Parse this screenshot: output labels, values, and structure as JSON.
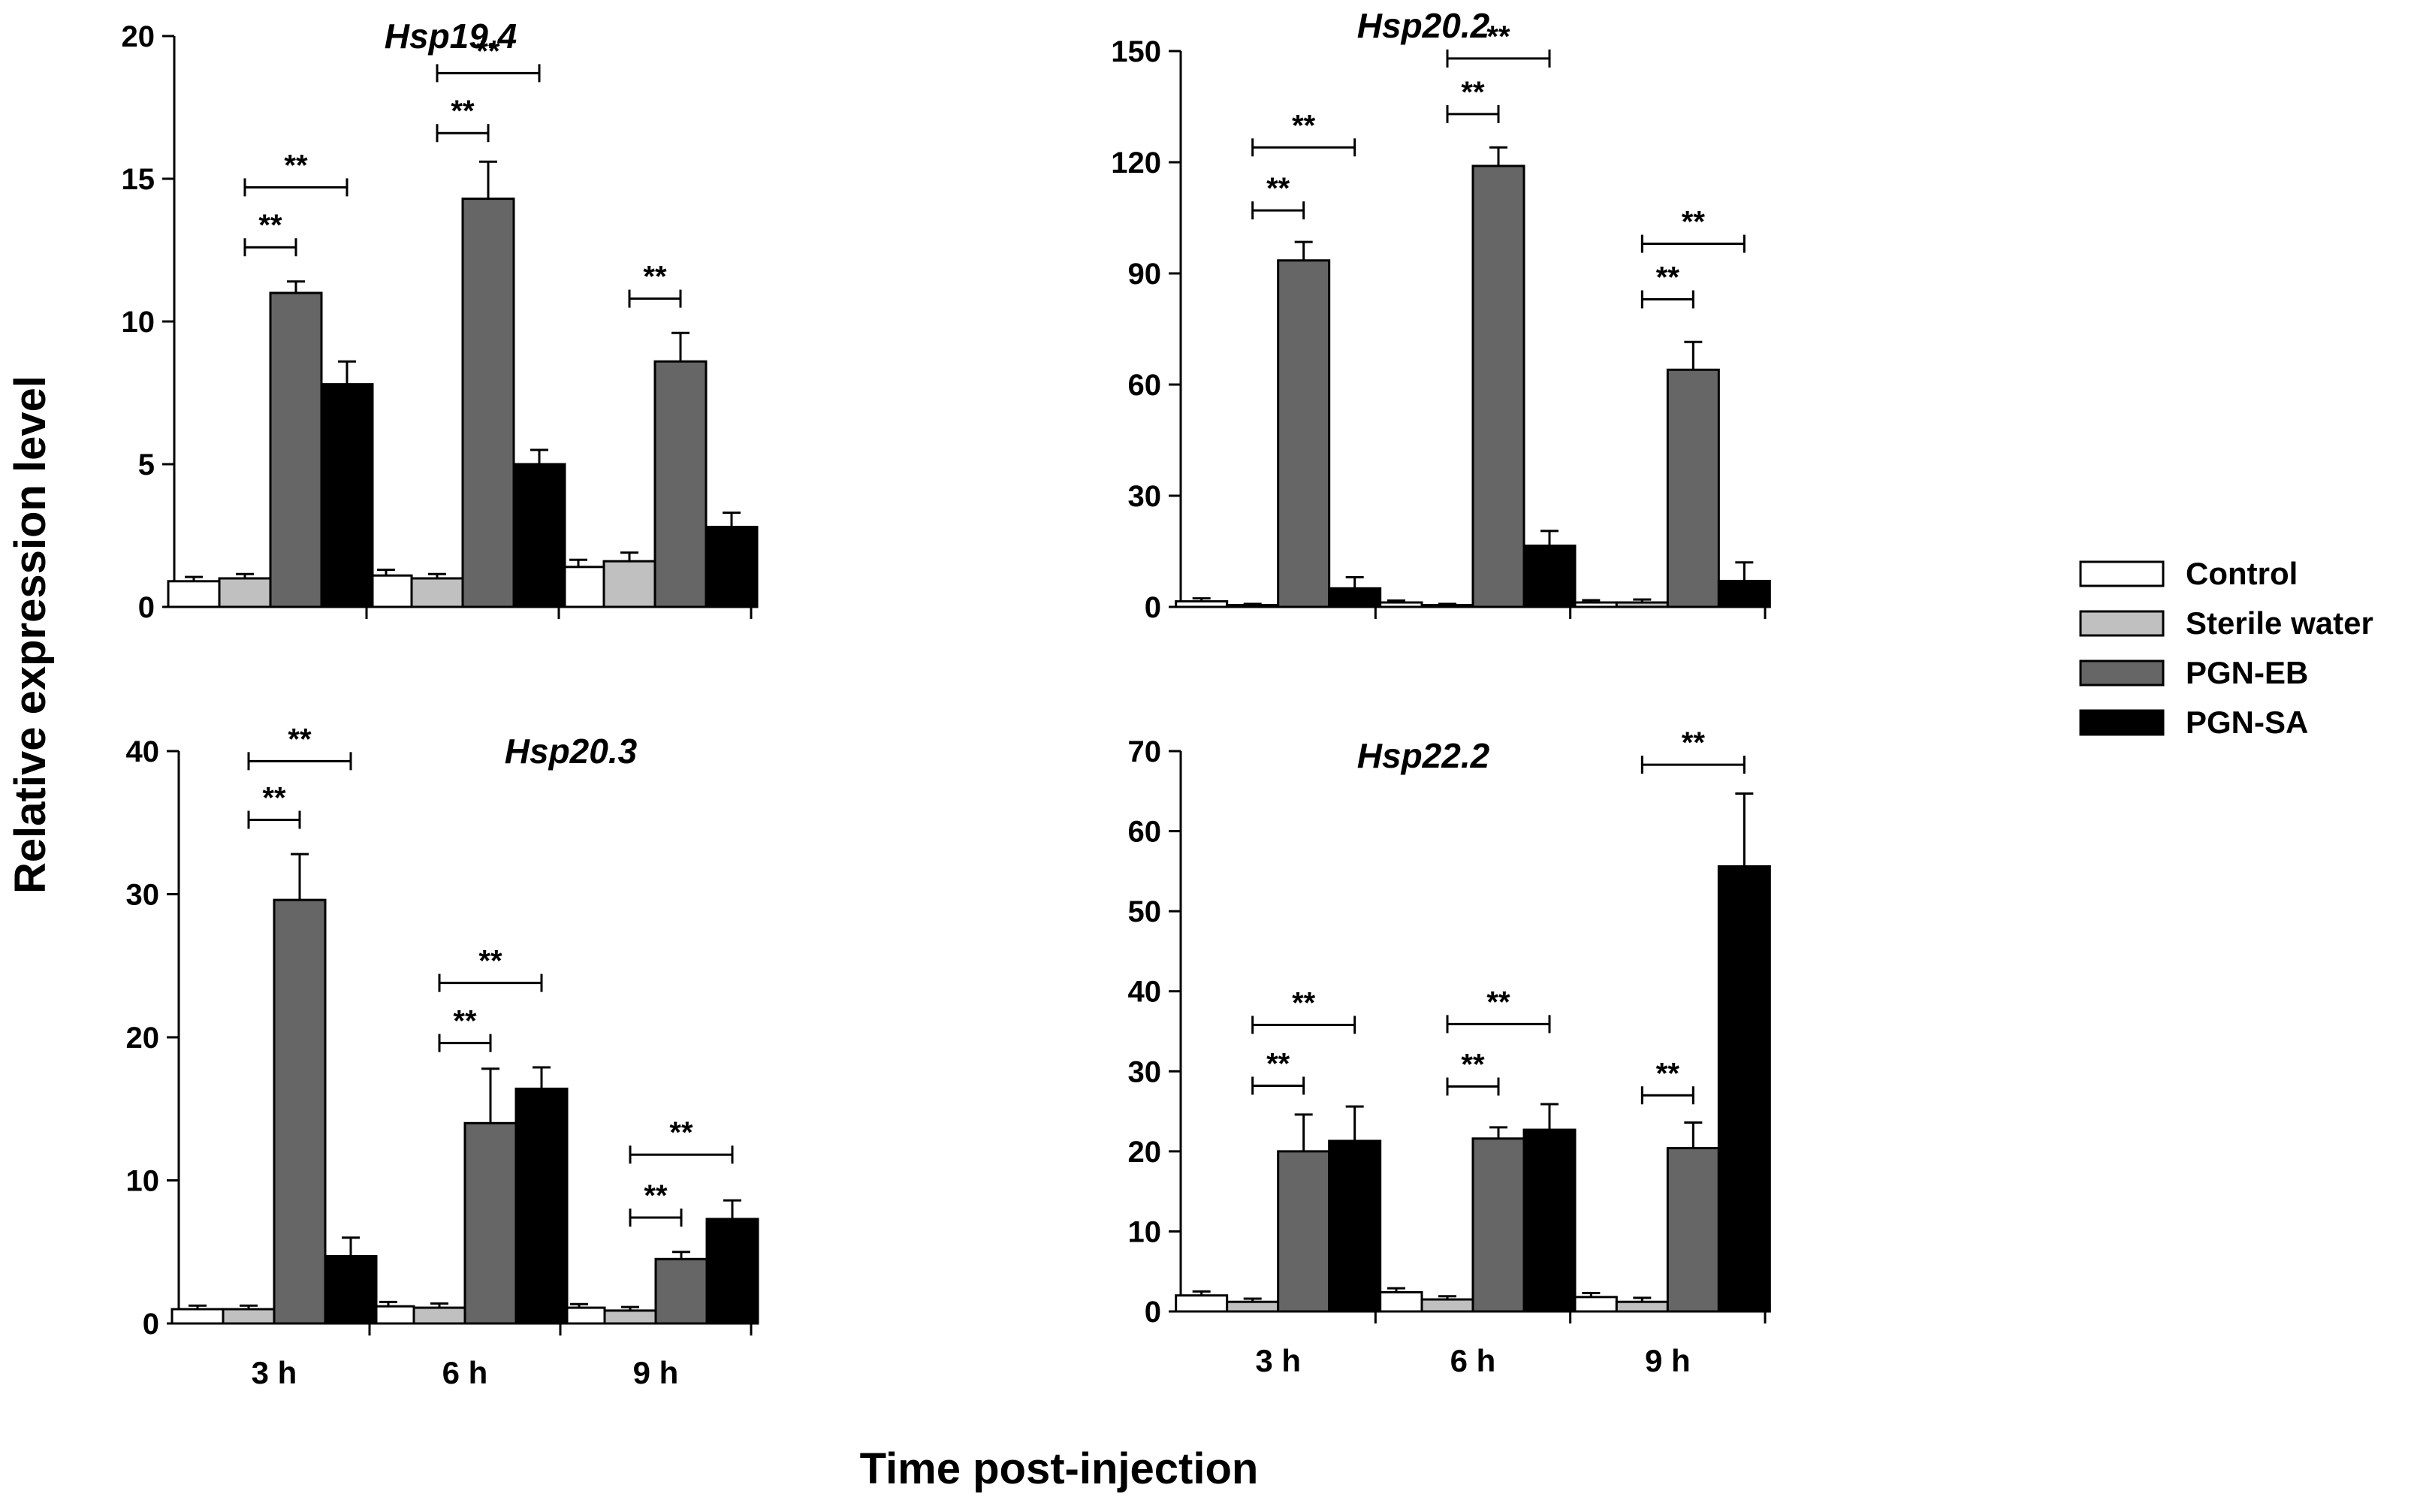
{
  "figure": {
    "ylabel": "Relative expression level",
    "xlabel": "Time post-injection"
  },
  "legend": [
    {
      "name": "Control",
      "color": "#ffffff"
    },
    {
      "name": "Sterile water",
      "color": "#c0c0c0"
    },
    {
      "name": "PGN-EB",
      "color": "#666666"
    },
    {
      "name": "PGN-SA",
      "color": "#000000"
    }
  ],
  "chart_data": [
    {
      "type": "bar",
      "title": "Hsp19.4",
      "xlabel": "",
      "ylabel": "Relative expression level",
      "categories": [
        "3 h",
        "6 h",
        "9 h"
      ],
      "ylim": [
        0,
        20
      ],
      "yticks": [
        0,
        5,
        10,
        15,
        20
      ],
      "show_category_labels": false,
      "series": [
        {
          "name": "Control",
          "values": [
            0.9,
            1.1,
            1.4
          ],
          "errors": [
            0.15,
            0.2,
            0.25
          ]
        },
        {
          "name": "Sterile water",
          "values": [
            1.0,
            1.0,
            1.6
          ],
          "errors": [
            0.15,
            0.15,
            0.3
          ]
        },
        {
          "name": "PGN-EB",
          "values": [
            11.0,
            14.3,
            8.6
          ],
          "errors": [
            0.4,
            1.3,
            1.0
          ]
        },
        {
          "name": "PGN-SA",
          "values": [
            7.8,
            5.0,
            2.8
          ],
          "errors": [
            0.8,
            0.5,
            0.5
          ]
        }
      ],
      "significance": [
        {
          "category": 0,
          "from": "Sterile water",
          "to": "PGN-EB",
          "label": "**",
          "level": 12.6
        },
        {
          "category": 0,
          "from": "Sterile water",
          "to": "PGN-SA",
          "label": "**",
          "level": 14.7
        },
        {
          "category": 1,
          "from": "Sterile water",
          "to": "PGN-EB",
          "label": "**",
          "level": 16.6
        },
        {
          "category": 1,
          "from": "Sterile water",
          "to": "PGN-SA",
          "label": "**",
          "level": 18.7
        },
        {
          "category": 2,
          "from": "Sterile water",
          "to": "PGN-EB",
          "label": "**",
          "level": 10.8
        }
      ]
    },
    {
      "type": "bar",
      "title": "Hsp20.2",
      "xlabel": "",
      "ylabel": "Relative expression level",
      "categories": [
        "3 h",
        "6 h",
        "9 h"
      ],
      "ylim": [
        0,
        150
      ],
      "yticks": [
        0,
        30,
        60,
        90,
        120,
        150
      ],
      "show_category_labels": false,
      "series": [
        {
          "name": "Control",
          "values": [
            1.5,
            1.2,
            1.2
          ],
          "errors": [
            0.8,
            0.5,
            0.6
          ]
        },
        {
          "name": "Sterile water",
          "values": [
            0.5,
            0.5,
            1.2
          ],
          "errors": [
            0.3,
            0.3,
            0.8
          ]
        },
        {
          "name": "PGN-EB",
          "values": [
            93.5,
            119.0,
            64.0
          ],
          "errors": [
            5.0,
            5.0,
            7.5
          ]
        },
        {
          "name": "PGN-SA",
          "values": [
            5.0,
            16.5,
            7.0
          ],
          "errors": [
            3.0,
            4.0,
            5.0
          ]
        }
      ],
      "significance": [
        {
          "category": 0,
          "from": "Sterile water",
          "to": "PGN-EB",
          "label": "**",
          "level": 107
        },
        {
          "category": 0,
          "from": "Sterile water",
          "to": "PGN-SA",
          "label": "**",
          "level": 124
        },
        {
          "category": 1,
          "from": "Sterile water",
          "to": "PGN-EB",
          "label": "**",
          "level": 133
        },
        {
          "category": 1,
          "from": "Sterile water",
          "to": "PGN-SA",
          "label": "**",
          "level": 148
        },
        {
          "category": 2,
          "from": "Sterile water",
          "to": "PGN-EB",
          "label": "**",
          "level": 83
        },
        {
          "category": 2,
          "from": "Sterile water",
          "to": "PGN-SA",
          "label": "**",
          "level": 98
        }
      ]
    },
    {
      "type": "bar",
      "title": "Hsp20.3",
      "xlabel": "",
      "ylabel": "Relative expression level",
      "categories": [
        "3 h",
        "6 h",
        "9 h"
      ],
      "ylim": [
        0,
        40
      ],
      "yticks": [
        0,
        10,
        20,
        30,
        40
      ],
      "show_category_labels": true,
      "series": [
        {
          "name": "Control",
          "values": [
            1.0,
            1.2,
            1.1
          ],
          "errors": [
            0.25,
            0.3,
            0.25
          ]
        },
        {
          "name": "Sterile water",
          "values": [
            1.0,
            1.1,
            0.9
          ],
          "errors": [
            0.25,
            0.3,
            0.25
          ]
        },
        {
          "name": "PGN-EB",
          "values": [
            29.6,
            14.0,
            4.5
          ],
          "errors": [
            3.2,
            3.8,
            0.5
          ]
        },
        {
          "name": "PGN-SA",
          "values": [
            4.7,
            16.4,
            7.3
          ],
          "errors": [
            1.3,
            1.5,
            1.3
          ]
        }
      ],
      "significance": [
        {
          "category": 0,
          "from": "Sterile water",
          "to": "PGN-EB",
          "label": "**",
          "level": 35.2
        },
        {
          "category": 0,
          "from": "Sterile water",
          "to": "PGN-SA",
          "label": "**",
          "level": 39.3
        },
        {
          "category": 1,
          "from": "Sterile water",
          "to": "PGN-EB",
          "label": "**",
          "level": 19.6
        },
        {
          "category": 1,
          "from": "Sterile water",
          "to": "PGN-SA",
          "label": "**",
          "level": 23.8
        },
        {
          "category": 2,
          "from": "Sterile water",
          "to": "PGN-EB",
          "label": "**",
          "level": 7.4
        },
        {
          "category": 2,
          "from": "Sterile water",
          "to": "PGN-SA",
          "label": "**",
          "level": 11.8
        }
      ]
    },
    {
      "type": "bar",
      "title": "Hsp22.2",
      "xlabel": "",
      "ylabel": "Relative expression level",
      "categories": [
        "3 h",
        "6 h",
        "9 h"
      ],
      "ylim": [
        0,
        70
      ],
      "yticks": [
        0,
        10,
        20,
        30,
        40,
        50,
        60,
        70
      ],
      "show_category_labels": true,
      "series": [
        {
          "name": "Control",
          "values": [
            2.0,
            2.4,
            1.8
          ],
          "errors": [
            0.5,
            0.5,
            0.5
          ]
        },
        {
          "name": "Sterile water",
          "values": [
            1.2,
            1.5,
            1.2
          ],
          "errors": [
            0.4,
            0.4,
            0.5
          ]
        },
        {
          "name": "PGN-EB",
          "values": [
            20.0,
            21.6,
            20.4
          ],
          "errors": [
            4.6,
            1.4,
            3.2
          ]
        },
        {
          "name": "PGN-SA",
          "values": [
            21.3,
            22.7,
            55.6
          ],
          "errors": [
            4.3,
            3.2,
            9.1
          ]
        }
      ],
      "significance": [
        {
          "category": 0,
          "from": "Sterile water",
          "to": "PGN-EB",
          "label": "**",
          "level": 28.2
        },
        {
          "category": 0,
          "from": "Sterile water",
          "to": "PGN-SA",
          "label": "**",
          "level": 35.8
        },
        {
          "category": 1,
          "from": "Sterile water",
          "to": "PGN-EB",
          "label": "**",
          "level": 28.1
        },
        {
          "category": 1,
          "from": "Sterile water",
          "to": "PGN-SA",
          "label": "**",
          "level": 35.9
        },
        {
          "category": 2,
          "from": "Sterile water",
          "to": "PGN-EB",
          "label": "**",
          "level": 27.0
        },
        {
          "category": 2,
          "from": "Sterile water",
          "to": "PGN-SA",
          "label": "**",
          "level": 68.3
        }
      ]
    }
  ]
}
